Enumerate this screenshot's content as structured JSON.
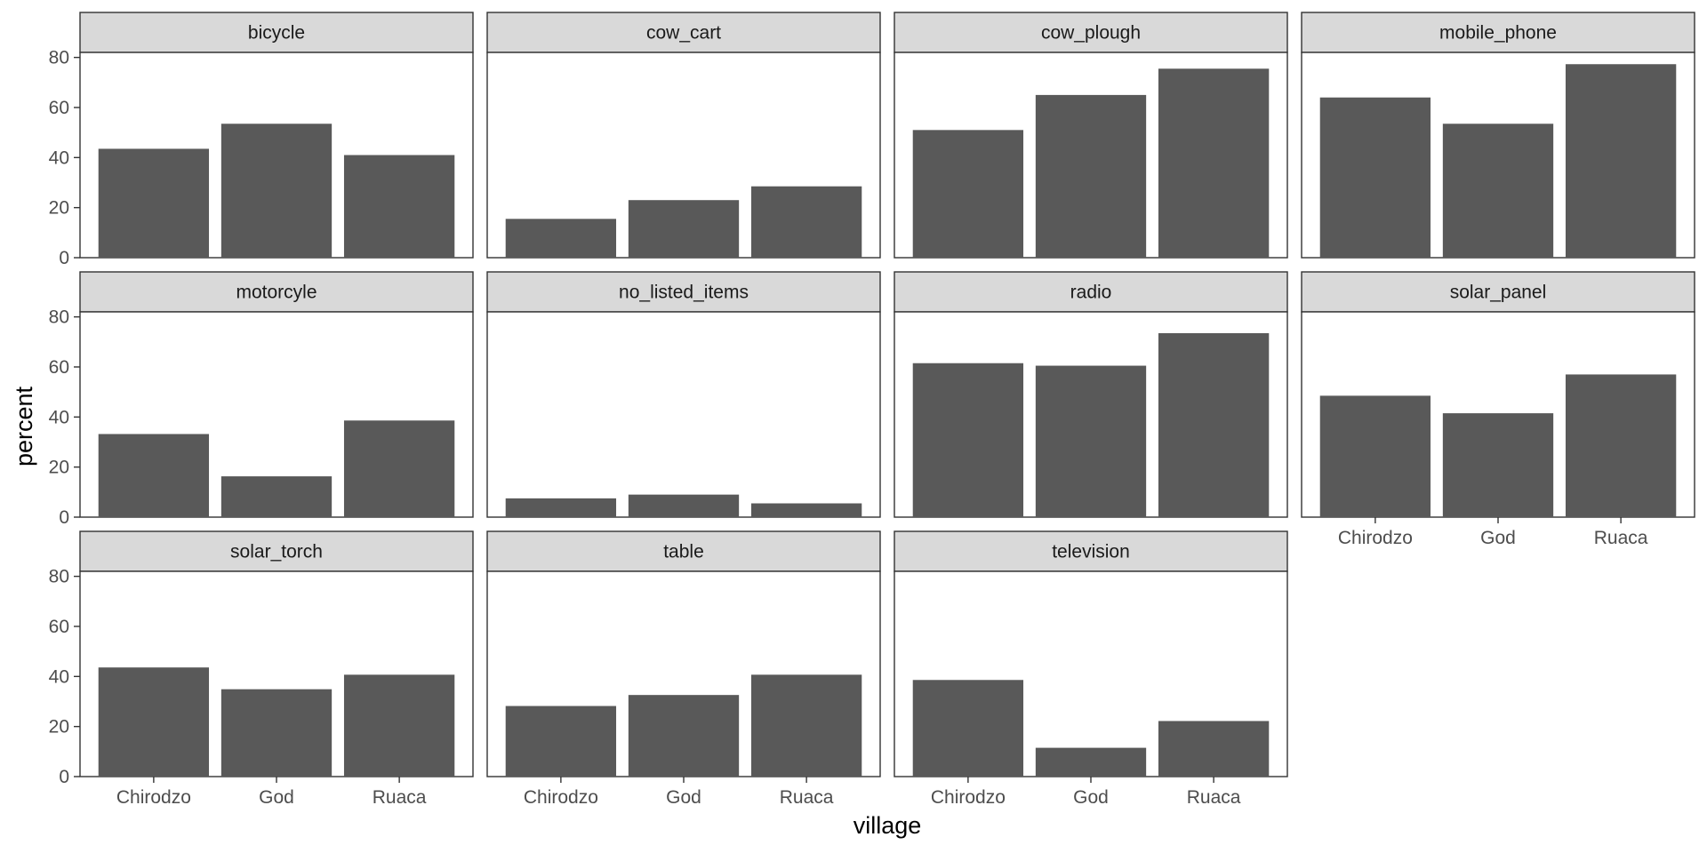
{
  "chart_data": {
    "type": "bar",
    "layout": "facet_wrap",
    "facet_columns": 4,
    "categories": [
      "Chirodzo",
      "God",
      "Ruaca"
    ],
    "xlabel": "village",
    "ylabel": "percent",
    "ylim": [
      0,
      82
    ],
    "yticks": [
      0,
      20,
      40,
      60,
      80
    ],
    "grid": false,
    "bar_color": "#595959",
    "strip_color": "#d9d9d9",
    "panels": [
      {
        "title": "bicycle",
        "values": [
          43.5,
          53.5,
          41
        ]
      },
      {
        "title": "cow_cart",
        "values": [
          15.5,
          23,
          28.5
        ]
      },
      {
        "title": "cow_plough",
        "values": [
          51,
          65,
          75.5
        ]
      },
      {
        "title": "mobile_phone",
        "values": [
          64,
          53.5,
          77.3
        ]
      },
      {
        "title": "motorcyle",
        "values": [
          33.2,
          16.3,
          38.6
        ]
      },
      {
        "title": "no_listed_items",
        "values": [
          7.5,
          9,
          5.5
        ]
      },
      {
        "title": "radio",
        "values": [
          61.5,
          60.5,
          73.5
        ]
      },
      {
        "title": "solar_panel",
        "values": [
          48.5,
          41.5,
          57
        ]
      },
      {
        "title": "solar_torch",
        "values": [
          43.6,
          34.9,
          40.7
        ]
      },
      {
        "title": "table",
        "values": [
          28.2,
          32.6,
          40.7
        ]
      },
      {
        "title": "television",
        "values": [
          38.6,
          11.5,
          22.2
        ]
      }
    ]
  }
}
